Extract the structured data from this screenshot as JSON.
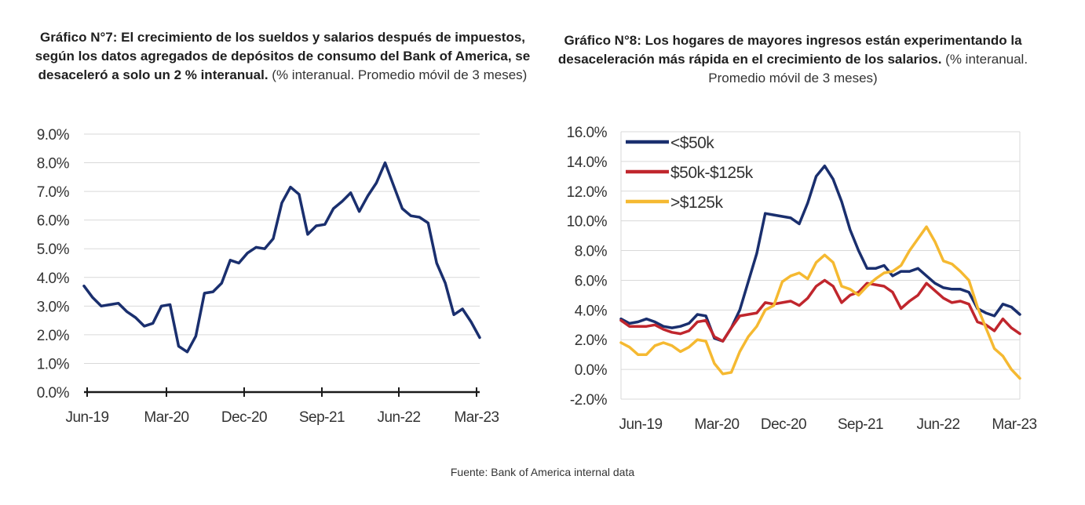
{
  "source": "Fuente: Bank of America internal data",
  "chart_data": [
    {
      "type": "line",
      "title": "Gráfico N°7:  El crecimiento de los sueldos y salarios después de impuestos, según los datos agregados de depósitos de consumo del Bank of America, se desaceleró a solo un 2 % interanual.",
      "subtitle": "(% interanual. Promedio móvil de 3 meses)",
      "xlabel": "",
      "ylabel": "",
      "ylim": [
        0,
        9
      ],
      "yticks": [
        "0.0%",
        "1.0%",
        "2.0%",
        "3.0%",
        "4.0%",
        "5.0%",
        "6.0%",
        "7.0%",
        "8.0%",
        "9.0%"
      ],
      "xticks": [
        "Jun-19",
        "Mar-20",
        "Dec-20",
        "Sep-21",
        "Jun-22",
        "Mar-23"
      ],
      "grid": true,
      "color": "#1a2f6e",
      "series": [
        {
          "values": [
            3.7,
            3.3,
            3.0,
            3.05,
            3.1,
            2.8,
            2.6,
            2.3,
            2.4,
            3.0,
            3.05,
            1.6,
            1.4,
            1.95,
            3.45,
            3.5,
            3.8,
            4.6,
            4.5,
            4.85,
            5.05,
            5.0,
            5.35,
            6.6,
            7.15,
            6.9,
            5.5,
            5.8,
            5.85,
            6.4,
            6.65,
            6.95,
            6.3,
            6.85,
            7.3,
            8.0,
            7.2,
            6.4,
            6.15,
            6.1,
            5.9,
            4.5,
            3.8,
            2.7,
            2.9,
            2.45,
            1.9
          ]
        }
      ]
    },
    {
      "type": "line",
      "title": "Gráfico N°8: Los hogares de mayores ingresos están experimentando la desaceleración más rápida en el crecimiento de los salarios.",
      "subtitle": "(% interanual. Promedio móvil de 3 meses)",
      "xlabel": "",
      "ylabel": "",
      "ylim": [
        -2,
        16
      ],
      "yticks": [
        "-2.0%",
        "0.0%",
        "2.0%",
        "4.0%",
        "6.0%",
        "8.0%",
        "10.0%",
        "12.0%",
        "14.0%",
        "16.0%"
      ],
      "xticks": [
        "Jun-19",
        "Mar-20",
        "Dec-20",
        "Sep-21",
        "Jun-22",
        "Mar-23"
      ],
      "grid": true,
      "legend_position": "top-left",
      "series": [
        {
          "name": "<$50k",
          "color": "#1a2f6e",
          "values": [
            3.4,
            3.1,
            3.2,
            3.4,
            3.2,
            2.9,
            2.8,
            2.9,
            3.1,
            3.7,
            3.6,
            2.1,
            1.9,
            2.8,
            4.0,
            5.9,
            7.8,
            10.5,
            10.4,
            10.3,
            10.2,
            9.8,
            11.2,
            13.0,
            13.7,
            12.8,
            11.3,
            9.4,
            8.0,
            6.8,
            6.8,
            7.0,
            6.3,
            6.6,
            6.6,
            6.8,
            6.3,
            5.8,
            5.5,
            5.4,
            5.4,
            5.2,
            4.1,
            3.8,
            3.6,
            4.4,
            4.2,
            3.7
          ]
        },
        {
          "name": "$50k-$125k",
          "color": "#c0262d",
          "values": [
            3.3,
            2.9,
            2.9,
            2.9,
            3.0,
            2.7,
            2.5,
            2.4,
            2.6,
            3.2,
            3.3,
            2.2,
            1.9,
            2.8,
            3.6,
            3.7,
            3.8,
            4.5,
            4.4,
            4.5,
            4.6,
            4.3,
            4.8,
            5.6,
            6.0,
            5.6,
            4.5,
            5.0,
            5.2,
            5.8,
            5.7,
            5.6,
            5.2,
            4.1,
            4.6,
            5.0,
            5.8,
            5.3,
            4.8,
            4.5,
            4.6,
            4.4,
            3.2,
            3.0,
            2.6,
            3.4,
            2.8,
            2.4
          ]
        },
        {
          "name": ">$125k",
          "color": "#f5b931",
          "values": [
            1.8,
            1.5,
            1.0,
            1.0,
            1.6,
            1.8,
            1.6,
            1.2,
            1.5,
            2.0,
            1.9,
            0.4,
            -0.3,
            -0.2,
            1.2,
            2.2,
            2.9,
            4.0,
            4.3,
            5.9,
            6.3,
            6.5,
            6.1,
            7.2,
            7.7,
            7.2,
            5.6,
            5.4,
            5.0,
            5.6,
            6.1,
            6.5,
            6.6,
            7.0,
            8.0,
            8.8,
            9.6,
            8.6,
            7.3,
            7.1,
            6.6,
            6.0,
            4.2,
            2.8,
            1.4,
            0.9,
            0.0,
            -0.6
          ]
        }
      ]
    }
  ]
}
